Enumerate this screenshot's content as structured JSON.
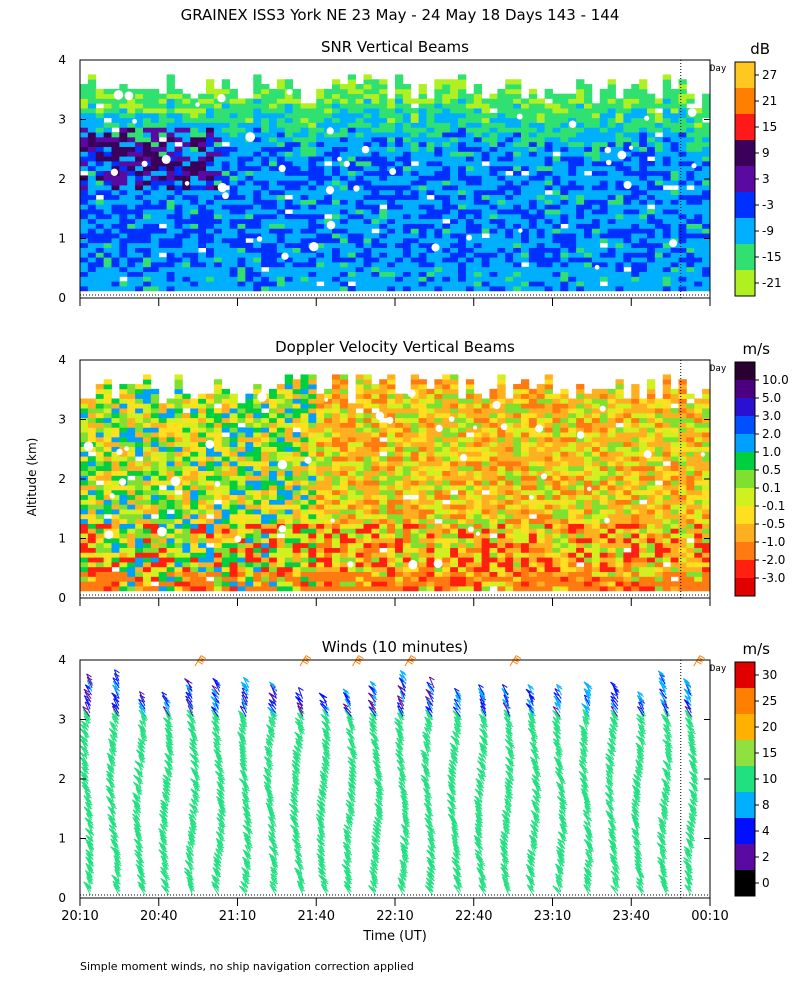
{
  "title": "GRAINEX ISS3 York NE  23 May - 24 May 18 Days 143 - 144",
  "footer_note": "Simple moment winds, no ship navigation correction applied",
  "x_axis": {
    "label": "Time (UT)",
    "ticks": [
      "20:10",
      "20:40",
      "21:10",
      "21:40",
      "22:10",
      "22:40",
      "23:10",
      "23:40",
      "00:10"
    ]
  },
  "y_axis": {
    "label": "Altitude (km)",
    "ticks": [
      "0",
      "1",
      "2",
      "3",
      "4"
    ],
    "range": [
      0,
      4
    ]
  },
  "day_marker_label": "Day",
  "chart_data": [
    {
      "type": "heatmap",
      "title": "SNR Vertical Beams",
      "unit": "dB",
      "xlim_time": [
        "20:10",
        "00:10"
      ],
      "ylim": [
        0,
        4
      ],
      "colorbar_ticks": [
        "27",
        "21",
        "15",
        "9",
        "3",
        "-3",
        "-9",
        "-15",
        "-21"
      ],
      "colorbar_colors": [
        "#ffc820",
        "#ff8000",
        "#ff1a1a",
        "#3a005a",
        "#5a0aa0",
        "#0030ff",
        "#00b0ff",
        "#30e070",
        "#b0f020"
      ],
      "data_top_km": 3.5,
      "dominant_values_db": {
        "low_altitude": -9,
        "mid_altitude": -3,
        "near_top": -15
      }
    },
    {
      "type": "heatmap",
      "title": "Doppler Velocity Vertical Beams",
      "unit": "m/s",
      "xlim_time": [
        "20:10",
        "00:10"
      ],
      "ylim": [
        0,
        4
      ],
      "colorbar_ticks": [
        "10.0",
        "5.0",
        "3.0",
        "2.0",
        "1.0",
        "0.5",
        "0.1",
        "-0.1",
        "-0.5",
        "-1.0",
        "-2.0",
        "-3.0"
      ],
      "colorbar_colors": [
        "#2a0030",
        "#4a0080",
        "#2a10d0",
        "#0050ff",
        "#00a0ff",
        "#00d040",
        "#80e030",
        "#d0f020",
        "#ffe020",
        "#ffb020",
        "#ff7a10",
        "#ff2010",
        "#e00000"
      ],
      "data_top_km": 3.5
    },
    {
      "type": "scatter",
      "title": "Winds (10 minutes)",
      "unit": "m/s",
      "xlim_time": [
        "20:10",
        "00:10"
      ],
      "ylim": [
        0,
        4
      ],
      "colorbar_ticks": [
        "30",
        "25",
        "20",
        "15",
        "10",
        "8",
        "4",
        "2",
        "0"
      ],
      "colorbar_colors": [
        "#e00000",
        "#ff8000",
        "#ffb000",
        "#90e040",
        "#20e080",
        "#00b0ff",
        "#0010ff",
        "#5a0aa0",
        "#000000"
      ],
      "profile_times": [
        "20:10",
        "20:20",
        "20:30",
        "20:40",
        "20:50",
        "21:00",
        "21:10",
        "21:20",
        "21:30",
        "21:40",
        "21:50",
        "22:00",
        "22:10",
        "22:20",
        "22:30",
        "22:40",
        "22:50",
        "23:00",
        "23:10",
        "23:20",
        "23:30",
        "23:40",
        "23:50",
        "00:00"
      ],
      "dominant_speed_ms": {
        "below_3km": 12,
        "above_3km": 6
      }
    }
  ]
}
